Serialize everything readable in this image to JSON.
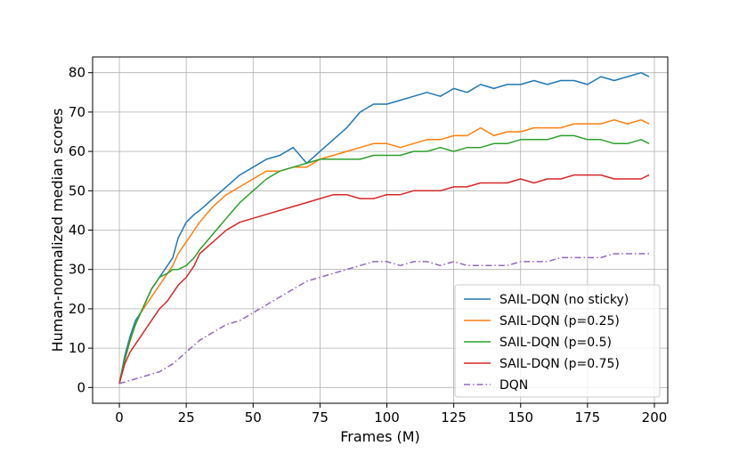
{
  "chart_data": {
    "type": "line",
    "title": "",
    "xlabel": "Frames (M)",
    "ylabel": "Human-normalized median scores",
    "xlim": [
      -10,
      205
    ],
    "ylim": [
      -4,
      84
    ],
    "xticks": [
      0,
      25,
      50,
      75,
      100,
      125,
      150,
      175,
      200
    ],
    "yticks": [
      0,
      10,
      20,
      30,
      40,
      50,
      60,
      70,
      80
    ],
    "grid": true,
    "legend_position": "lower-right",
    "series": [
      {
        "name": "SAIL-DQN (no sticky)",
        "color": "#1f77b4",
        "style": "solid",
        "x": [
          0,
          2,
          4,
          6,
          8,
          10,
          12,
          15,
          18,
          20,
          22,
          25,
          28,
          30,
          35,
          40,
          45,
          50,
          55,
          60,
          65,
          70,
          75,
          80,
          85,
          90,
          95,
          100,
          105,
          110,
          115,
          120,
          125,
          130,
          135,
          140,
          145,
          150,
          155,
          160,
          165,
          170,
          175,
          180,
          185,
          190,
          195,
          198
        ],
        "y": [
          1,
          8,
          13,
          17,
          19,
          22,
          25,
          28,
          31,
          33,
          38,
          42,
          44,
          45,
          48,
          51,
          54,
          56,
          58,
          59,
          61,
          57,
          60,
          63,
          66,
          70,
          72,
          72,
          73,
          74,
          75,
          74,
          76,
          75,
          77,
          76,
          77,
          77,
          78,
          77,
          78,
          78,
          77,
          79,
          78,
          79,
          80,
          79
        ]
      },
      {
        "name": "SAIL-DQN (p=0.25)",
        "color": "#ff7f0e",
        "style": "solid",
        "x": [
          0,
          2,
          4,
          6,
          8,
          10,
          12,
          15,
          18,
          20,
          22,
          25,
          28,
          30,
          35,
          40,
          45,
          50,
          55,
          60,
          65,
          70,
          75,
          80,
          85,
          90,
          95,
          100,
          105,
          110,
          115,
          120,
          125,
          130,
          135,
          140,
          145,
          150,
          155,
          160,
          165,
          170,
          175,
          180,
          185,
          190,
          195,
          198
        ],
        "y": [
          1,
          7,
          12,
          16,
          19,
          21,
          23,
          26,
          29,
          31,
          34,
          37,
          40,
          42,
          46,
          49,
          51,
          53,
          55,
          55,
          56,
          56,
          58,
          59,
          60,
          61,
          62,
          62,
          61,
          62,
          63,
          63,
          64,
          64,
          66,
          64,
          65,
          65,
          66,
          66,
          66,
          67,
          67,
          67,
          68,
          67,
          68,
          67
        ]
      },
      {
        "name": "SAIL-DQN (p=0.5)",
        "color": "#2ca02c",
        "style": "solid",
        "x": [
          0,
          2,
          4,
          6,
          8,
          10,
          12,
          15,
          18,
          20,
          22,
          25,
          28,
          30,
          35,
          40,
          45,
          50,
          55,
          60,
          65,
          70,
          75,
          80,
          85,
          90,
          95,
          100,
          105,
          110,
          115,
          120,
          125,
          130,
          135,
          140,
          145,
          150,
          155,
          160,
          165,
          170,
          175,
          180,
          185,
          190,
          195,
          198
        ],
        "y": [
          1,
          7,
          12,
          16,
          19,
          22,
          25,
          28,
          29,
          30,
          30,
          31,
          33,
          35,
          39,
          43,
          47,
          50,
          53,
          55,
          56,
          57,
          58,
          58,
          58,
          58,
          59,
          59,
          59,
          60,
          60,
          61,
          60,
          61,
          61,
          62,
          62,
          63,
          63,
          63,
          64,
          64,
          63,
          63,
          62,
          62,
          63,
          62
        ]
      },
      {
        "name": "SAIL-DQN (p=0.75)",
        "color": "#d62728",
        "style": "solid",
        "x": [
          0,
          2,
          4,
          6,
          8,
          10,
          12,
          15,
          18,
          20,
          22,
          25,
          28,
          30,
          35,
          40,
          45,
          50,
          55,
          60,
          65,
          70,
          75,
          80,
          85,
          90,
          95,
          100,
          105,
          110,
          115,
          120,
          125,
          130,
          135,
          140,
          145,
          150,
          155,
          160,
          165,
          170,
          175,
          180,
          185,
          190,
          195,
          198
        ],
        "y": [
          1,
          6,
          9,
          11,
          13,
          15,
          17,
          20,
          22,
          24,
          26,
          28,
          31,
          34,
          37,
          40,
          42,
          43,
          44,
          45,
          46,
          47,
          48,
          49,
          49,
          48,
          48,
          49,
          49,
          50,
          50,
          50,
          51,
          51,
          52,
          52,
          52,
          53,
          52,
          53,
          53,
          54,
          54,
          54,
          53,
          53,
          53,
          54
        ]
      },
      {
        "name": "DQN",
        "color": "#9467bd",
        "style": "dashdot",
        "x": [
          0,
          5,
          10,
          15,
          20,
          25,
          30,
          35,
          40,
          45,
          50,
          55,
          60,
          65,
          70,
          75,
          80,
          85,
          90,
          95,
          100,
          105,
          110,
          115,
          120,
          125,
          130,
          135,
          140,
          145,
          150,
          155,
          160,
          165,
          170,
          175,
          180,
          185,
          190,
          195,
          198
        ],
        "y": [
          1,
          2,
          3,
          4,
          6,
          9,
          12,
          14,
          16,
          17,
          19,
          21,
          23,
          25,
          27,
          28,
          29,
          30,
          31,
          32,
          32,
          31,
          32,
          32,
          31,
          32,
          31,
          31,
          31,
          31,
          32,
          32,
          32,
          33,
          33,
          33,
          33,
          34,
          34,
          34,
          34
        ]
      }
    ]
  }
}
